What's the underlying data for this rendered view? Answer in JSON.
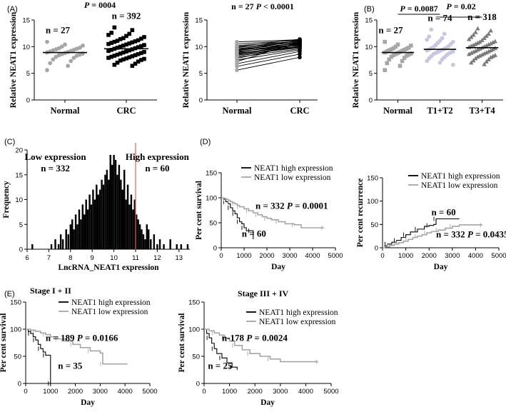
{
  "colors": {
    "normal": "#a6a6a6",
    "crc": "#000000",
    "t12": "#c7c7de",
    "t34": "#7a7a7a",
    "high": "#000000",
    "low": "#a6a6a6",
    "cutoff": "#e06060",
    "hist": "#000000"
  },
  "chart_data": [
    {
      "id": "A1",
      "type": "scatter",
      "panel_label": "(A)",
      "title": "P = 0004",
      "ylabel": "Relative NEAT1 expression",
      "ylim": [
        0,
        15
      ],
      "yticks": [
        0,
        5,
        10,
        15
      ],
      "categories": [
        "Normal",
        "CRC"
      ],
      "counts": [
        "n = 27",
        "n = 392"
      ],
      "means": [
        8.9,
        9.6
      ],
      "series": [
        {
          "name": "Normal",
          "values": [
            10.9,
            10.4,
            10.2,
            10.0,
            9.8,
            9.7,
            9.6,
            9.5,
            9.4,
            9.3,
            9.2,
            9.1,
            9.0,
            8.9,
            8.8,
            8.7,
            8.6,
            8.5,
            8.4,
            8.3,
            8.1,
            7.9,
            7.6,
            7.3,
            6.9,
            6.4,
            5.6
          ]
        },
        {
          "name": "CRC",
          "values": [
            13.6,
            13.1,
            12.6,
            12.4,
            12.2,
            12.0,
            11.8,
            11.6,
            11.5,
            11.4,
            11.2,
            11.1,
            11.0,
            10.9,
            10.8,
            10.7,
            10.6,
            10.5,
            10.4,
            10.3,
            10.2,
            10.1,
            10.0,
            9.9,
            9.8,
            9.7,
            9.6,
            9.5,
            9.4,
            9.3,
            9.2,
            9.1,
            9.0,
            8.9,
            8.8,
            8.7,
            8.6,
            8.5,
            8.4,
            8.3,
            8.2,
            8.1,
            8.0,
            7.9,
            7.8,
            7.7,
            7.6,
            7.5,
            7.4,
            7.2,
            7.0,
            6.8,
            6.6,
            6.4
          ]
        }
      ]
    },
    {
      "id": "A2",
      "type": "line",
      "title": "n = 27 P < 0.0001",
      "ylabel": "Relative NEAT1 expression",
      "ylim": [
        0,
        15
      ],
      "yticks": [
        0,
        5,
        10,
        15
      ],
      "categories": [
        "Normal",
        "CRC"
      ],
      "pairs": [
        [
          10.9,
          11.3
        ],
        [
          10.5,
          11.2
        ],
        [
          10.2,
          11.0
        ],
        [
          10.0,
          11.4
        ],
        [
          9.9,
          10.8
        ],
        [
          9.8,
          11.1
        ],
        [
          9.6,
          10.9
        ],
        [
          9.5,
          10.6
        ],
        [
          9.4,
          10.7
        ],
        [
          9.3,
          10.4
        ],
        [
          9.2,
          11.2
        ],
        [
          9.1,
          10.2
        ],
        [
          9.0,
          10.5
        ],
        [
          8.9,
          10.8
        ],
        [
          8.8,
          10.0
        ],
        [
          8.7,
          10.3
        ],
        [
          8.6,
          9.9
        ],
        [
          8.5,
          10.6
        ],
        [
          8.4,
          9.8
        ],
        [
          8.2,
          10.1
        ],
        [
          8.0,
          9.6
        ],
        [
          7.8,
          10.4
        ],
        [
          7.5,
          9.4
        ],
        [
          7.2,
          10.9
        ],
        [
          6.8,
          9.1
        ],
        [
          6.3,
          8.6
        ],
        [
          5.6,
          8.0
        ]
      ]
    },
    {
      "id": "B",
      "type": "scatter",
      "panel_label": "(B)",
      "ylabel": "Relative NEAT1 expression",
      "ylim": [
        0,
        15
      ],
      "yticks": [
        0,
        5,
        10,
        15
      ],
      "categories": [
        "Normal",
        "T1+T2",
        "T3+T4"
      ],
      "counts": [
        "n = 27",
        "n = 74",
        "n = 318"
      ],
      "means": [
        8.9,
        9.5,
        9.8
      ],
      "brackets": [
        {
          "from": 0,
          "to": 1,
          "label": "P = 0.0087"
        },
        {
          "from": 1,
          "to": 2,
          "label": "P = 0.02"
        }
      ],
      "series": [
        {
          "name": "Normal",
          "values": [
            10.9,
            10.4,
            10.2,
            10.0,
            9.8,
            9.7,
            9.6,
            9.5,
            9.4,
            9.3,
            9.2,
            9.1,
            9.0,
            8.9,
            8.8,
            8.7,
            8.6,
            8.5,
            8.4,
            8.3,
            8.1,
            7.9,
            7.6,
            7.3,
            6.9,
            6.4,
            5.6
          ]
        },
        {
          "name": "T1+T2",
          "values": [
            13.2,
            12.4,
            11.9,
            11.6,
            11.3,
            11.1,
            10.9,
            10.7,
            10.5,
            10.3,
            10.1,
            9.9,
            9.8,
            9.7,
            9.6,
            9.5,
            9.4,
            9.3,
            9.2,
            9.1,
            9.0,
            8.9,
            8.8,
            8.7,
            8.6,
            8.4,
            8.2,
            8.0,
            7.8,
            7.6,
            7.3,
            7.0,
            6.6
          ]
        },
        {
          "name": "T3+T4",
          "values": [
            13.4,
            13.0,
            12.7,
            12.4,
            12.2,
            12.0,
            11.8,
            11.6,
            11.4,
            11.2,
            11.0,
            10.9,
            10.8,
            10.7,
            10.6,
            10.5,
            10.4,
            10.3,
            10.2,
            10.1,
            10.0,
            9.9,
            9.8,
            9.7,
            9.6,
            9.5,
            9.4,
            9.3,
            9.2,
            9.1,
            9.0,
            8.9,
            8.8,
            8.7,
            8.6,
            8.5,
            8.4,
            8.3,
            8.2,
            8.1,
            8.0,
            7.8,
            7.6,
            7.4,
            7.2,
            7.0,
            6.7
          ]
        }
      ]
    },
    {
      "id": "C",
      "type": "bar",
      "panel_label": "(C)",
      "xlabel": "LncRNA_NEAT1 expression",
      "ylabel": "Frequency",
      "xlim": [
        6,
        13.5
      ],
      "ylim": [
        0,
        20
      ],
      "xticks": [
        6,
        7,
        8,
        9,
        10,
        11,
        12,
        13
      ],
      "yticks": [
        0,
        5,
        10,
        15,
        20
      ],
      "cutoff": 11.0,
      "annotations": [
        {
          "text": "Low expression",
          "x": 7.3,
          "y": 18
        },
        {
          "text": "n = 332",
          "x": 7.3,
          "y": 15.7
        },
        {
          "text": "High expression",
          "x": 12.0,
          "y": 18
        },
        {
          "text": "n = 60",
          "x": 12.0,
          "y": 15.7
        }
      ],
      "bin_width": 0.08,
      "x": [
        6.24,
        7.12,
        7.3,
        7.45,
        7.55,
        7.65,
        7.8,
        7.9,
        8.0,
        8.08,
        8.16,
        8.24,
        8.32,
        8.4,
        8.48,
        8.56,
        8.64,
        8.72,
        8.8,
        8.88,
        8.96,
        9.04,
        9.12,
        9.2,
        9.28,
        9.36,
        9.44,
        9.52,
        9.6,
        9.68,
        9.76,
        9.84,
        9.92,
        10.0,
        10.08,
        10.16,
        10.24,
        10.32,
        10.4,
        10.48,
        10.56,
        10.64,
        10.72,
        10.8,
        10.88,
        10.96,
        11.04,
        11.12,
        11.2,
        11.28,
        11.36,
        11.44,
        11.52,
        11.6,
        11.7,
        11.85,
        12.0,
        12.12,
        12.3,
        12.6,
        12.9,
        13.1,
        13.4
      ],
      "values": [
        1,
        1,
        2,
        1,
        3,
        2,
        4,
        3,
        5,
        6,
        4,
        7,
        5,
        8,
        6,
        9,
        7,
        10,
        8,
        11,
        9,
        12,
        10,
        13,
        11,
        12,
        14,
        13,
        15,
        16,
        14,
        19,
        17,
        19,
        18,
        15,
        17,
        14,
        12,
        16,
        10,
        13,
        9,
        11,
        8,
        10,
        7,
        6,
        5,
        4,
        3,
        2,
        5,
        4,
        2,
        3,
        1,
        2,
        1,
        2,
        1,
        1,
        1
      ]
    },
    {
      "id": "D1",
      "type": "line",
      "panel_label": "(D)",
      "xlabel": "Day",
      "ylabel": "Per cent survival",
      "xlim": [
        0,
        5000
      ],
      "ylim": [
        0,
        150
      ],
      "xticks": [
        0,
        1000,
        2000,
        3000,
        4000,
        5000
      ],
      "yticks": [
        0,
        50,
        100,
        150
      ],
      "legend": [
        "NEAT1 high expression",
        "NEAT1 low expression"
      ],
      "annotations": [
        {
          "text": "n = 332 P = 0.0001",
          "x": 1500,
          "y": 78
        },
        {
          "text": "n = 60",
          "x": 900,
          "y": 22
        }
      ],
      "series": [
        {
          "name": "NEAT1 high expression",
          "x": [
            0,
            100,
            200,
            300,
            400,
            500,
            600,
            700,
            800,
            900,
            1000,
            1100,
            1300,
            1400
          ],
          "y": [
            100,
            97,
            92,
            88,
            80,
            74,
            68,
            60,
            52,
            48,
            40,
            34,
            34,
            17
          ]
        },
        {
          "name": "NEAT1 low expression",
          "x": [
            0,
            100,
            200,
            300,
            400,
            500,
            600,
            700,
            800,
            1000,
            1200,
            1400,
            1600,
            1800,
            2000,
            2200,
            2500,
            2800,
            3200,
            3500,
            4500
          ],
          "y": [
            100,
            99,
            97,
            95,
            92,
            90,
            88,
            85,
            82,
            78,
            74,
            70,
            66,
            62,
            59,
            56,
            52,
            48,
            46,
            40,
            40
          ]
        }
      ]
    },
    {
      "id": "D2",
      "type": "line",
      "xlabel": "Day",
      "ylabel": "Per cent recurrence",
      "xlim": [
        0,
        5000
      ],
      "ylim": [
        0,
        150
      ],
      "xticks": [
        0,
        1000,
        2000,
        3000,
        4000,
        5000
      ],
      "yticks": [
        0,
        50,
        100,
        150
      ],
      "legend": [
        "NEAT1 high expression",
        "NEAT1 low expression"
      ],
      "annotations": [
        {
          "text": "n = 60",
          "x": 2100,
          "y": 70
        },
        {
          "text": "n = 332 P = 0.0435",
          "x": 2300,
          "y": 22
        }
      ],
      "series": [
        {
          "name": "NEAT1 high expression",
          "x": [
            0,
            100,
            200,
            400,
            600,
            800,
            1000,
            1200,
            1500,
            1800,
            2000,
            2200,
            2300,
            3300
          ],
          "y": [
            0,
            4,
            8,
            12,
            16,
            22,
            28,
            34,
            40,
            46,
            48,
            50,
            62,
            62
          ]
        },
        {
          "name": "NEAT1 low expression",
          "x": [
            0,
            100,
            300,
            500,
            700,
            900,
            1100,
            1300,
            1500,
            1700,
            1900,
            2100,
            2400,
            2700,
            3000,
            3300,
            4300
          ],
          "y": [
            0,
            2,
            5,
            8,
            11,
            14,
            18,
            22,
            25,
            28,
            32,
            35,
            38,
            42,
            46,
            49,
            49
          ]
        }
      ]
    },
    {
      "id": "E1",
      "type": "line",
      "panel_label": "(E)",
      "title": "Stage I + II",
      "xlabel": "Day",
      "ylabel": "Per cent survival",
      "xlim": [
        0,
        5000
      ],
      "ylim": [
        0,
        150
      ],
      "xticks": [
        0,
        1000,
        2000,
        3000,
        4000,
        5000
      ],
      "yticks": [
        0,
        50,
        100,
        150
      ],
      "legend": [
        "NEAT1 high expression",
        "NEAT1 low expression"
      ],
      "annotations": [
        {
          "text": "n = 189 P = 0.0166",
          "x": 800,
          "y": 78
        },
        {
          "text": "n = 35",
          "x": 1300,
          "y": 27
        }
      ],
      "series": [
        {
          "name": "NEAT1 high expression",
          "x": [
            0,
            100,
            200,
            300,
            400,
            500,
            600,
            700,
            800,
            1000,
            1000
          ],
          "y": [
            100,
            96,
            92,
            86,
            80,
            72,
            64,
            58,
            52,
            46,
            0
          ]
        },
        {
          "name": "NEAT1 low expression",
          "x": [
            0,
            200,
            400,
            600,
            800,
            1000,
            1300,
            1600,
            1900,
            2200,
            2600,
            3000,
            3100,
            4100
          ],
          "y": [
            100,
            98,
            96,
            93,
            90,
            86,
            82,
            78,
            72,
            66,
            60,
            56,
            36,
            36
          ]
        }
      ]
    },
    {
      "id": "E2",
      "type": "line",
      "title": "Stage III + IV",
      "xlabel": "Day",
      "ylabel": "Per cent survival",
      "xlim": [
        0,
        5000
      ],
      "ylim": [
        0,
        150
      ],
      "xticks": [
        0,
        1000,
        2000,
        3000,
        4000,
        5000
      ],
      "yticks": [
        0,
        50,
        100,
        150
      ],
      "legend": [
        "NEAT1 high expression",
        "NEAT1 low expression"
      ],
      "annotations": [
        {
          "text": "n-178 P = 0.0024",
          "x": 700,
          "y": 78
        },
        {
          "text": "n = 25",
          "x": 150,
          "y": 27
        }
      ],
      "series": [
        {
          "name": "NEAT1 high expression",
          "x": [
            0,
            100,
            200,
            300,
            400,
            500,
            700,
            900,
            1100,
            1300
          ],
          "y": [
            100,
            92,
            84,
            74,
            64,
            55,
            47,
            38,
            30,
            25
          ]
        },
        {
          "name": "NEAT1 low expression",
          "x": [
            0,
            200,
            400,
            600,
            800,
            1000,
            1200,
            1500,
            1800,
            2200,
            2600,
            3000,
            4500
          ],
          "y": [
            100,
            97,
            93,
            89,
            84,
            78,
            70,
            62,
            55,
            50,
            45,
            40,
            40
          ]
        }
      ]
    }
  ]
}
